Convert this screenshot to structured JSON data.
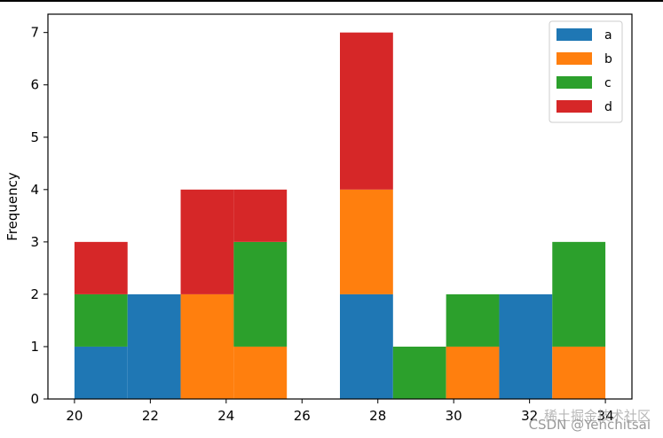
{
  "chart_data": {
    "type": "bar",
    "stacked": true,
    "histogram": true,
    "bin_edges": [
      20.0,
      21.4,
      22.8,
      24.2,
      25.6,
      27.0,
      28.4,
      29.8,
      31.2,
      32.6,
      34.0
    ],
    "series": [
      {
        "name": "a",
        "color": "#1f77b4",
        "values": [
          1,
          2,
          0,
          0,
          0,
          2,
          0,
          0,
          2,
          0
        ]
      },
      {
        "name": "b",
        "color": "#ff7f0e",
        "values": [
          0,
          0,
          2,
          1,
          0,
          2,
          0,
          1,
          0,
          1
        ]
      },
      {
        "name": "c",
        "color": "#2ca02c",
        "values": [
          1,
          0,
          0,
          2,
          0,
          0,
          1,
          1,
          0,
          2
        ]
      },
      {
        "name": "d",
        "color": "#d62728",
        "values": [
          1,
          0,
          2,
          1,
          0,
          3,
          0,
          0,
          0,
          0
        ]
      }
    ],
    "xlim": [
      19.3,
      34.7
    ],
    "ylim": [
      0,
      7.35
    ],
    "xticks": [
      20,
      22,
      24,
      26,
      28,
      30,
      32,
      34
    ],
    "yticks": [
      0,
      1,
      2,
      3,
      4,
      5,
      6,
      7
    ],
    "xlabel": "",
    "ylabel": "Frequency",
    "title": "",
    "legend": "top-right",
    "grid": false
  },
  "watermark": "CSDN @Yenchitsai",
  "watermark_faint": "稀土掘金技术社区"
}
